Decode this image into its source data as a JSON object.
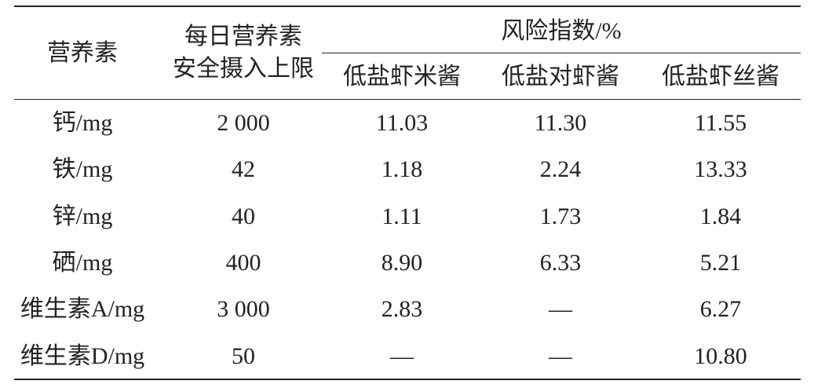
{
  "table": {
    "header": {
      "nutrient": "营养素",
      "limit": [
        "每日营养素",
        "安全摄入上限"
      ],
      "risk": "风险指数/%",
      "products": [
        "低盐虾米酱",
        "低盐对虾酱",
        "低盐虾丝酱"
      ]
    },
    "rows": [
      [
        "钙/mg",
        "2 000",
        "11.03",
        "11.30",
        "11.55"
      ],
      [
        "铁/mg",
        "42",
        "1.18",
        "2.24",
        "13.33"
      ],
      [
        "锌/mg",
        "40",
        "1.11",
        "1.73",
        "1.84"
      ],
      [
        "硒/mg",
        "400",
        "8.90",
        "6.33",
        "5.21"
      ],
      [
        "维生素A/mg",
        "3 000",
        "2.83",
        "—",
        "6.27"
      ],
      [
        "维生素D/mg",
        "50",
        "—",
        "—",
        "10.80"
      ]
    ]
  }
}
